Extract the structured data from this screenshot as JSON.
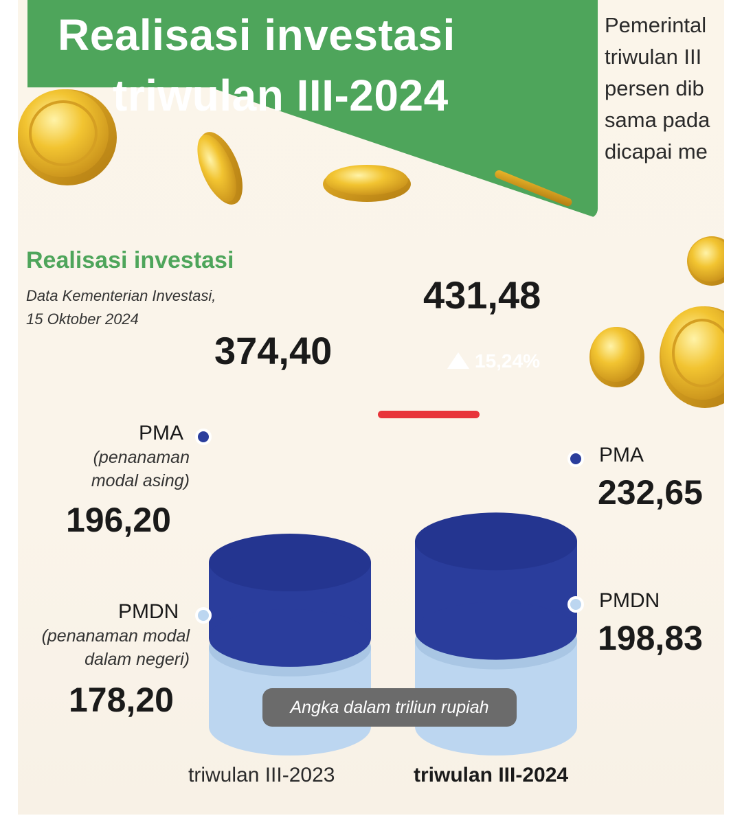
{
  "header": {
    "title_line1": "Realisasi investasi",
    "title_line2": "triwulan III-2024",
    "lede_lines": [
      "Pemerintal",
      "triwulan III",
      "persen dib",
      "sama pada",
      "dicapai me"
    ]
  },
  "chart_data": {
    "type": "bar",
    "title": "Realisasi investasi",
    "source_line1": "Data Kementerian Investasi,",
    "source_line2": "15 Oktober 2024",
    "unit_note": "Angka dalam triliun rupiah",
    "categories": [
      "triwulan III-2023",
      "triwulan III-2024"
    ],
    "totals": [
      "374,40",
      "431,48"
    ],
    "total_values": [
      374.4,
      431.48
    ],
    "growth_label": "15,24%",
    "series": [
      {
        "name": "PMA",
        "description": "(penanaman modal asing)",
        "description_lines": [
          "(penanaman",
          "modal asing)"
        ],
        "values": [
          196.2,
          232.65
        ],
        "value_labels": [
          "196,20",
          "232,65"
        ],
        "color": "#2a3d9c"
      },
      {
        "name": "PMDN",
        "description": "(penanaman modal dalam negeri)",
        "description_lines": [
          "(penanaman modal",
          "dalam negeri)"
        ],
        "values": [
          178.2,
          198.83
        ],
        "value_labels": [
          "178,20",
          "198,83"
        ],
        "color": "#bcd6f0"
      }
    ]
  },
  "colors": {
    "brand_green": "#4ea55b",
    "pma_blue": "#2a3d9c",
    "pmdn_light_blue": "#bcd6f0",
    "marker_red": "#e8343a"
  },
  "icons": [
    "gold-coin-icon",
    "up-triangle-icon"
  ]
}
